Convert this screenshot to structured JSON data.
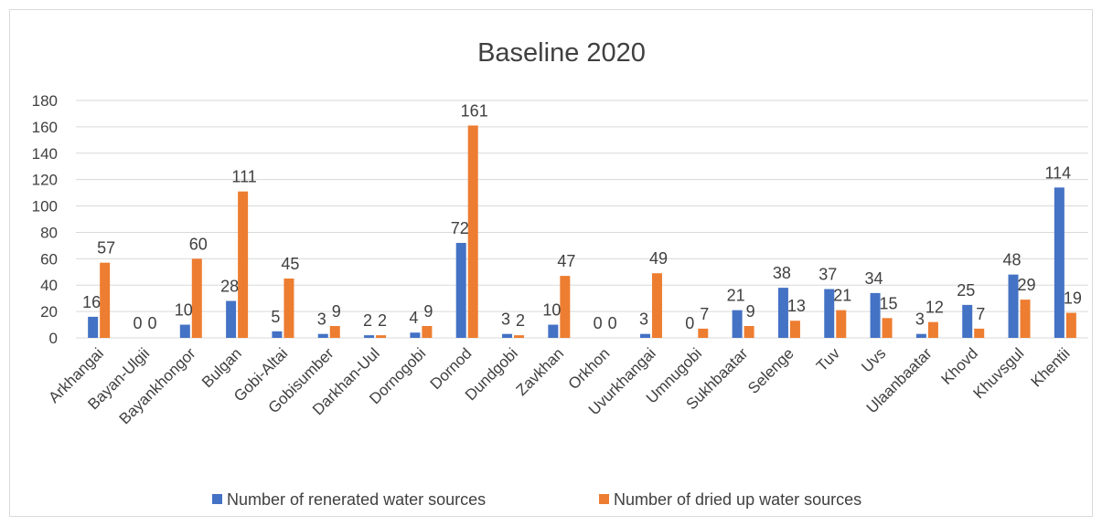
{
  "chart_data": {
    "type": "bar",
    "title": "Baseline 2020",
    "categories": [
      "Arkhangai",
      "Bayan-Ulgii",
      "Bayankhongor",
      "Bulgan",
      "Gobi-Altai",
      "Gobisumber",
      "Darkhan-Uul",
      "Dornogobi",
      "Dornod",
      "Dundgobi",
      "Zavkhan",
      "Orkhon",
      "Uvurkhangai",
      "Umnugobi",
      "Sukhbaatar",
      "Selenge",
      "Tuv",
      "Uvs",
      "Ulaanbaatar",
      "Khovd",
      "Khuvsgul",
      "Khentii"
    ],
    "series": [
      {
        "name": "Number of renerated water sources",
        "color": "#4472C4",
        "values": [
          16,
          0,
          10,
          28,
          5,
          3,
          2,
          4,
          72,
          3,
          10,
          0,
          3,
          0,
          21,
          38,
          37,
          34,
          3,
          25,
          48,
          114
        ]
      },
      {
        "name": "Number of dried up water sources",
        "color": "#ED7D31",
        "values": [
          57,
          0,
          60,
          111,
          45,
          9,
          2,
          9,
          161,
          2,
          47,
          0,
          49,
          7,
          9,
          13,
          21,
          15,
          12,
          7,
          29,
          19
        ]
      }
    ],
    "y_ticks": [
      "0",
      "20",
      "40",
      "60",
      "80",
      "100",
      "120",
      "140",
      "160",
      "180"
    ],
    "ylim": [
      0,
      180
    ],
    "grid": true,
    "legend_position": "bottom"
  }
}
